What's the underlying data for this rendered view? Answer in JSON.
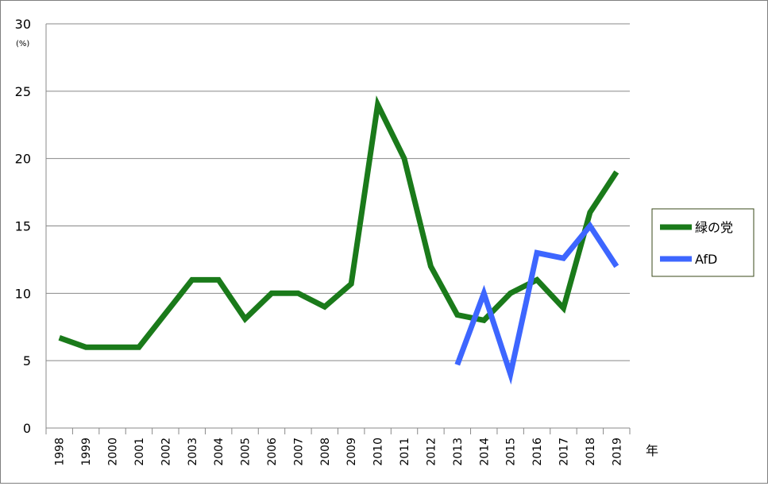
{
  "chart_data": {
    "type": "line",
    "categories": [
      "1998",
      "1999",
      "2000",
      "2001",
      "2002",
      "2003",
      "2004",
      "2005",
      "2006",
      "2007",
      "2008",
      "2009",
      "2010",
      "2011",
      "2012",
      "2013",
      "2014",
      "2015",
      "2016",
      "2017",
      "2018",
      "2019"
    ],
    "series": [
      {
        "name": "緑の党",
        "color": "#1a7a1a",
        "values": [
          6.7,
          6.0,
          6.0,
          6.0,
          8.5,
          11.0,
          11.0,
          8.1,
          10.0,
          10.0,
          9.0,
          10.7,
          24.0,
          20.0,
          12.0,
          8.4,
          8.0,
          10.0,
          11.0,
          8.9,
          16.0,
          19.0
        ]
      },
      {
        "name": "AfD",
        "color": "#3d66ff",
        "values": [
          null,
          null,
          null,
          null,
          null,
          null,
          null,
          null,
          null,
          null,
          null,
          null,
          null,
          null,
          null,
          4.7,
          10.0,
          4.0,
          13.0,
          12.6,
          15.0,
          12.0
        ]
      }
    ],
    "ylim": [
      0,
      30
    ],
    "yticks": [
      0,
      5,
      10,
      15,
      20,
      25,
      30
    ],
    "yunit": "(%)",
    "xlabel": "年",
    "grid": true,
    "legend_position": "right"
  }
}
